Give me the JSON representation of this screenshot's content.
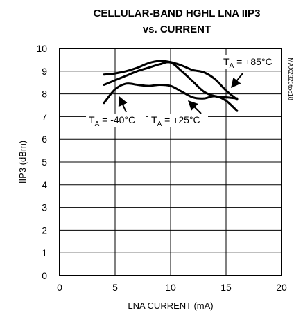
{
  "chart_data": {
    "type": "line",
    "title": "CELLULAR-BAND HGHL LNA IIP3",
    "subtitle": "vs. CURRENT",
    "xlabel": "LNA CURRENT (mA)",
    "ylabel": "IIP3 (dBm)",
    "xlim": [
      0,
      20
    ],
    "ylim": [
      0,
      10
    ],
    "xticks": [
      "0",
      "5",
      "10",
      "15",
      "20"
    ],
    "yticks": [
      "0",
      "1",
      "2",
      "3",
      "4",
      "5",
      "6",
      "7",
      "8",
      "9",
      "10"
    ],
    "grid": true,
    "watermark": "MAX2320toc18",
    "series": [
      {
        "name": "T_A = +85°C",
        "label_main": "T",
        "label_sub": "A",
        "label_rest": " = +85°C",
        "x": [
          4,
          5,
          6,
          7,
          8,
          9,
          10,
          11,
          12,
          13,
          14,
          15,
          16
        ],
        "y": [
          8.85,
          8.9,
          9.0,
          9.15,
          9.35,
          9.45,
          9.4,
          9.25,
          9.05,
          8.95,
          8.65,
          8.15,
          7.75
        ]
      },
      {
        "name": "T_A = +25°C",
        "label_main": "T",
        "label_sub": "A",
        "label_rest": " = +25°C",
        "x": [
          4,
          5,
          6,
          7,
          8,
          9,
          10,
          11,
          12,
          13,
          14,
          15,
          16
        ],
        "y": [
          8.4,
          8.6,
          8.8,
          9.0,
          9.15,
          9.3,
          9.38,
          9.0,
          8.55,
          8.1,
          7.9,
          7.85,
          7.8
        ]
      },
      {
        "name": "T_A = -40°C",
        "label_main": "T",
        "label_sub": "A",
        "label_rest": " = -40°C",
        "x": [
          4,
          5,
          6,
          7,
          8,
          9,
          10,
          11,
          12,
          13,
          14,
          15,
          16
        ],
        "y": [
          7.6,
          8.2,
          8.45,
          8.4,
          8.35,
          8.4,
          8.35,
          8.1,
          7.85,
          7.8,
          7.9,
          7.7,
          7.25
        ]
      }
    ]
  }
}
